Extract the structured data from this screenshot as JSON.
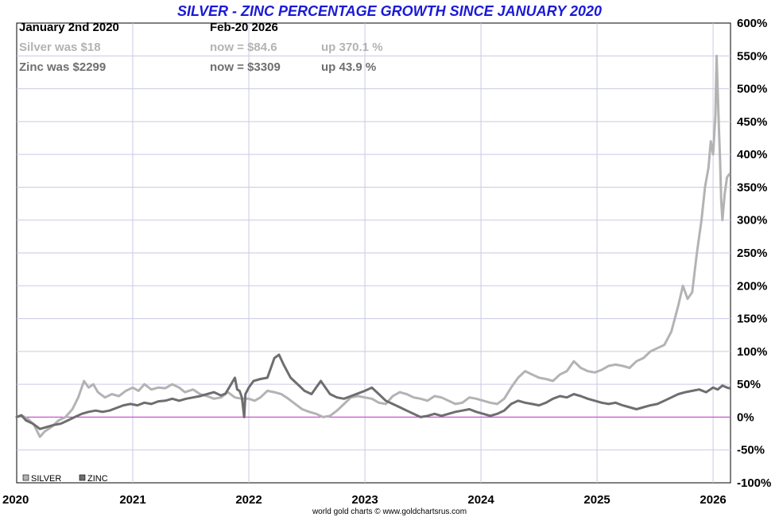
{
  "header": {
    "title": "SILVER - ZINC PERCENTAGE GROWTH SINCE JANUARY 2020",
    "start_label": "January 2nd 2020",
    "end_label": "Feb-20  2026",
    "rows": [
      {
        "name": "Silver",
        "was": "Silver was $18",
        "now": "now = $84.6",
        "up": "up 370.1 %",
        "color": "#b3b3b3"
      },
      {
        "name": "Zinc",
        "was": "Zinc was $2299",
        "now": "now = $3309",
        "up": "up 43.9 %",
        "color": "#6e6e6e"
      }
    ]
  },
  "credit": "world gold charts © www.goldchartsrus.com",
  "chart_data": {
    "type": "line",
    "title": "SILVER - ZINC PERCENTAGE GROWTH SINCE JANUARY 2020",
    "xlabel": "",
    "ylabel": "",
    "x_ticks": [
      "2020",
      "2021",
      "2022",
      "2023",
      "2024",
      "2025",
      "2026"
    ],
    "y_ticks": [
      "600%",
      "550%",
      "500%",
      "450%",
      "400%",
      "350%",
      "300%",
      "250%",
      "200%",
      "150%",
      "100%",
      "50%",
      "0%",
      "-50%",
      "-100%"
    ],
    "ylim": [
      -100,
      600
    ],
    "xlim": [
      2020.0,
      2026.15
    ],
    "grid": true,
    "reference_line": {
      "y": 0,
      "color": "#cc33cc"
    },
    "legend_position": "bottom-left",
    "series": [
      {
        "name": "SILVER",
        "color": "#b3b3b3",
        "points": [
          [
            2020.0,
            0
          ],
          [
            2020.05,
            2
          ],
          [
            2020.1,
            -3
          ],
          [
            2020.15,
            -12
          ],
          [
            2020.2,
            -30
          ],
          [
            2020.24,
            -22
          ],
          [
            2020.3,
            -15
          ],
          [
            2020.36,
            -5
          ],
          [
            2020.42,
            0
          ],
          [
            2020.48,
            12
          ],
          [
            2020.53,
            30
          ],
          [
            2020.58,
            55
          ],
          [
            2020.62,
            45
          ],
          [
            2020.66,
            50
          ],
          [
            2020.7,
            38
          ],
          [
            2020.76,
            30
          ],
          [
            2020.82,
            35
          ],
          [
            2020.88,
            32
          ],
          [
            2020.94,
            40
          ],
          [
            2021.0,
            45
          ],
          [
            2021.05,
            40
          ],
          [
            2021.1,
            50
          ],
          [
            2021.16,
            42
          ],
          [
            2021.22,
            45
          ],
          [
            2021.28,
            44
          ],
          [
            2021.34,
            50
          ],
          [
            2021.4,
            45
          ],
          [
            2021.45,
            38
          ],
          [
            2021.52,
            42
          ],
          [
            2021.58,
            35
          ],
          [
            2021.64,
            32
          ],
          [
            2021.7,
            28
          ],
          [
            2021.76,
            30
          ],
          [
            2021.82,
            38
          ],
          [
            2021.88,
            30
          ],
          [
            2021.94,
            28
          ],
          [
            2022.0,
            28
          ],
          [
            2022.05,
            25
          ],
          [
            2022.1,
            30
          ],
          [
            2022.16,
            40
          ],
          [
            2022.22,
            38
          ],
          [
            2022.28,
            35
          ],
          [
            2022.34,
            28
          ],
          [
            2022.4,
            20
          ],
          [
            2022.46,
            12
          ],
          [
            2022.52,
            8
          ],
          [
            2022.58,
            5
          ],
          [
            2022.64,
            0
          ],
          [
            2022.7,
            2
          ],
          [
            2022.76,
            10
          ],
          [
            2022.82,
            20
          ],
          [
            2022.88,
            30
          ],
          [
            2022.94,
            32
          ],
          [
            2023.0,
            30
          ],
          [
            2023.06,
            28
          ],
          [
            2023.12,
            22
          ],
          [
            2023.18,
            20
          ],
          [
            2023.24,
            32
          ],
          [
            2023.3,
            38
          ],
          [
            2023.36,
            35
          ],
          [
            2023.42,
            30
          ],
          [
            2023.48,
            28
          ],
          [
            2023.54,
            25
          ],
          [
            2023.6,
            32
          ],
          [
            2023.66,
            30
          ],
          [
            2023.72,
            25
          ],
          [
            2023.78,
            20
          ],
          [
            2023.84,
            22
          ],
          [
            2023.9,
            30
          ],
          [
            2023.96,
            28
          ],
          [
            2024.02,
            25
          ],
          [
            2024.08,
            22
          ],
          [
            2024.14,
            20
          ],
          [
            2024.2,
            28
          ],
          [
            2024.26,
            45
          ],
          [
            2024.32,
            60
          ],
          [
            2024.38,
            70
          ],
          [
            2024.44,
            65
          ],
          [
            2024.5,
            60
          ],
          [
            2024.56,
            58
          ],
          [
            2024.62,
            55
          ],
          [
            2024.68,
            65
          ],
          [
            2024.74,
            70
          ],
          [
            2024.8,
            85
          ],
          [
            2024.86,
            75
          ],
          [
            2024.92,
            70
          ],
          [
            2024.98,
            68
          ],
          [
            2025.04,
            72
          ],
          [
            2025.1,
            78
          ],
          [
            2025.16,
            80
          ],
          [
            2025.22,
            78
          ],
          [
            2025.28,
            75
          ],
          [
            2025.34,
            85
          ],
          [
            2025.4,
            90
          ],
          [
            2025.46,
            100
          ],
          [
            2025.52,
            105
          ],
          [
            2025.58,
            110
          ],
          [
            2025.64,
            130
          ],
          [
            2025.7,
            170
          ],
          [
            2025.74,
            200
          ],
          [
            2025.78,
            180
          ],
          [
            2025.82,
            190
          ],
          [
            2025.86,
            250
          ],
          [
            2025.9,
            300
          ],
          [
            2025.93,
            350
          ],
          [
            2025.96,
            380
          ],
          [
            2025.98,
            420
          ],
          [
            2026.0,
            400
          ],
          [
            2026.02,
            460
          ],
          [
            2026.03,
            550
          ],
          [
            2026.05,
            440
          ],
          [
            2026.06,
            390
          ],
          [
            2026.07,
            330
          ],
          [
            2026.08,
            300
          ],
          [
            2026.1,
            340
          ],
          [
            2026.12,
            365
          ],
          [
            2026.14,
            370
          ]
        ]
      },
      {
        "name": "ZINC",
        "color": "#6e6e6e",
        "points": [
          [
            2020.0,
            0
          ],
          [
            2020.04,
            3
          ],
          [
            2020.08,
            -5
          ],
          [
            2020.14,
            -10
          ],
          [
            2020.2,
            -18
          ],
          [
            2020.26,
            -15
          ],
          [
            2020.32,
            -12
          ],
          [
            2020.38,
            -10
          ],
          [
            2020.44,
            -5
          ],
          [
            2020.5,
            0
          ],
          [
            2020.56,
            5
          ],
          [
            2020.62,
            8
          ],
          [
            2020.68,
            10
          ],
          [
            2020.74,
            8
          ],
          [
            2020.8,
            10
          ],
          [
            2020.86,
            14
          ],
          [
            2020.92,
            18
          ],
          [
            2020.98,
            20
          ],
          [
            2021.04,
            18
          ],
          [
            2021.1,
            22
          ],
          [
            2021.16,
            20
          ],
          [
            2021.22,
            24
          ],
          [
            2021.28,
            25
          ],
          [
            2021.34,
            28
          ],
          [
            2021.4,
            25
          ],
          [
            2021.46,
            28
          ],
          [
            2021.52,
            30
          ],
          [
            2021.58,
            32
          ],
          [
            2021.64,
            35
          ],
          [
            2021.7,
            38
          ],
          [
            2021.76,
            33
          ],
          [
            2021.8,
            36
          ],
          [
            2021.84,
            48
          ],
          [
            2021.88,
            60
          ],
          [
            2021.9,
            42
          ],
          [
            2021.92,
            40
          ],
          [
            2021.94,
            30
          ],
          [
            2021.96,
            0
          ],
          [
            2021.97,
            35
          ],
          [
            2022.0,
            45
          ],
          [
            2022.04,
            55
          ],
          [
            2022.1,
            58
          ],
          [
            2022.16,
            60
          ],
          [
            2022.22,
            90
          ],
          [
            2022.26,
            95
          ],
          [
            2022.3,
            80
          ],
          [
            2022.36,
            60
          ],
          [
            2022.42,
            50
          ],
          [
            2022.48,
            40
          ],
          [
            2022.54,
            35
          ],
          [
            2022.58,
            45
          ],
          [
            2022.62,
            55
          ],
          [
            2022.66,
            45
          ],
          [
            2022.7,
            35
          ],
          [
            2022.76,
            30
          ],
          [
            2022.82,
            28
          ],
          [
            2022.88,
            32
          ],
          [
            2022.94,
            36
          ],
          [
            2023.0,
            40
          ],
          [
            2023.06,
            45
          ],
          [
            2023.12,
            35
          ],
          [
            2023.18,
            25
          ],
          [
            2023.24,
            20
          ],
          [
            2023.3,
            15
          ],
          [
            2023.36,
            10
          ],
          [
            2023.42,
            5
          ],
          [
            2023.48,
            0
          ],
          [
            2023.54,
            2
          ],
          [
            2023.6,
            5
          ],
          [
            2023.66,
            2
          ],
          [
            2023.72,
            5
          ],
          [
            2023.78,
            8
          ],
          [
            2023.84,
            10
          ],
          [
            2023.9,
            12
          ],
          [
            2023.96,
            8
          ],
          [
            2024.02,
            5
          ],
          [
            2024.08,
            2
          ],
          [
            2024.14,
            5
          ],
          [
            2024.2,
            10
          ],
          [
            2024.26,
            20
          ],
          [
            2024.32,
            25
          ],
          [
            2024.38,
            22
          ],
          [
            2024.44,
            20
          ],
          [
            2024.5,
            18
          ],
          [
            2024.56,
            22
          ],
          [
            2024.62,
            28
          ],
          [
            2024.68,
            32
          ],
          [
            2024.74,
            30
          ],
          [
            2024.8,
            35
          ],
          [
            2024.86,
            32
          ],
          [
            2024.92,
            28
          ],
          [
            2024.98,
            25
          ],
          [
            2025.04,
            22
          ],
          [
            2025.1,
            20
          ],
          [
            2025.16,
            22
          ],
          [
            2025.22,
            18
          ],
          [
            2025.28,
            15
          ],
          [
            2025.34,
            12
          ],
          [
            2025.4,
            15
          ],
          [
            2025.46,
            18
          ],
          [
            2025.52,
            20
          ],
          [
            2025.58,
            25
          ],
          [
            2025.64,
            30
          ],
          [
            2025.7,
            35
          ],
          [
            2025.76,
            38
          ],
          [
            2025.82,
            40
          ],
          [
            2025.88,
            42
          ],
          [
            2025.94,
            38
          ],
          [
            2026.0,
            45
          ],
          [
            2026.04,
            42
          ],
          [
            2026.08,
            48
          ],
          [
            2026.12,
            45
          ],
          [
            2026.14,
            44
          ]
        ]
      }
    ]
  }
}
